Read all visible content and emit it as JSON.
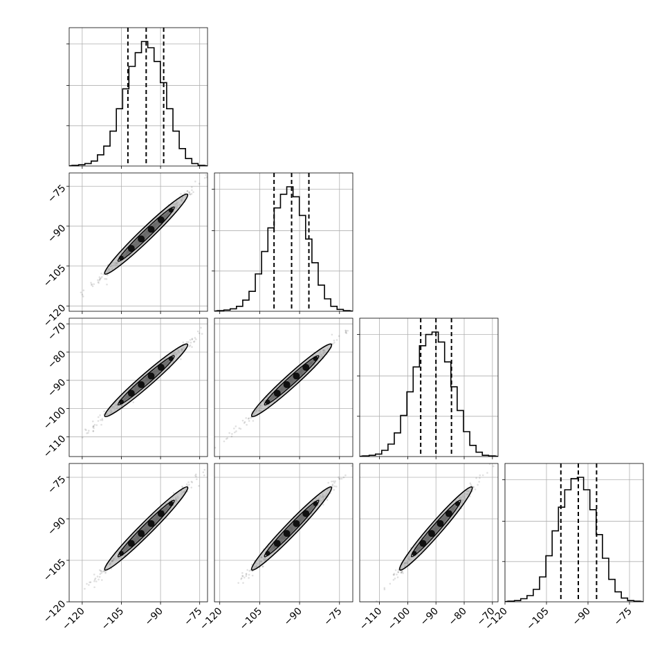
{
  "chart_data": {
    "type": "corner",
    "n_params": 4,
    "title": "",
    "params": [
      {
        "index": 0,
        "range": [
          -125,
          -72
        ],
        "ticks": [
          -120,
          -105,
          -90,
          -75
        ],
        "mean": -95.5,
        "sigma": 7.2,
        "hist_counts": [
          0.005,
          0.01,
          0.02,
          0.04,
          0.09,
          0.16,
          0.28,
          0.46,
          0.62,
          0.8,
          0.91,
          1.0,
          0.95,
          0.84,
          0.67,
          0.46,
          0.28,
          0.14,
          0.06,
          0.02,
          0.005
        ],
        "quantiles": [
          -102.5,
          -95.5,
          -88.8
        ]
      },
      {
        "index": 1,
        "range": [
          -122,
          -70
        ],
        "ticks": [
          -120,
          -105,
          -90,
          -75
        ],
        "mean": -93.0,
        "sigma": 6.8,
        "hist_counts": [
          0.005,
          0.01,
          0.02,
          0.04,
          0.09,
          0.16,
          0.3,
          0.48,
          0.67,
          0.83,
          0.94,
          1.0,
          0.92,
          0.77,
          0.58,
          0.39,
          0.21,
          0.1,
          0.04,
          0.015,
          0.005
        ],
        "quantiles": [
          -99.6,
          -93.0,
          -86.5
        ]
      },
      {
        "index": 1,
        "range": [
          -117,
          -68
        ],
        "ticks": [
          -110,
          -100,
          -90,
          -80,
          -70
        ],
        "mean": -90.0,
        "sigma": 5.8,
        "hist_counts": [
          0.005,
          0.01,
          0.02,
          0.05,
          0.1,
          0.19,
          0.33,
          0.52,
          0.72,
          0.89,
          0.98,
          1.0,
          0.92,
          0.76,
          0.56,
          0.37,
          0.2,
          0.09,
          0.035,
          0.01,
          0.005
        ],
        "quantiles": [
          -95.4,
          -90.0,
          -84.5
        ]
      },
      {
        "index": 1,
        "range": [
          -120,
          -70
        ],
        "ticks": [
          -120,
          -105,
          -90,
          -75
        ],
        "mean": -93.5,
        "sigma": 6.8,
        "hist_counts": [
          0.005,
          0.01,
          0.025,
          0.05,
          0.1,
          0.2,
          0.37,
          0.57,
          0.76,
          0.9,
          0.99,
          1.0,
          0.9,
          0.74,
          0.54,
          0.35,
          0.18,
          0.08,
          0.03,
          0.01,
          0.005
        ],
        "quantiles": [
          -99.8,
          -93.5,
          -86.9
        ]
      }
    ],
    "grid": true,
    "density_color": "#000000",
    "line_color": "#000000",
    "grid_color": "#b0b0b0"
  }
}
